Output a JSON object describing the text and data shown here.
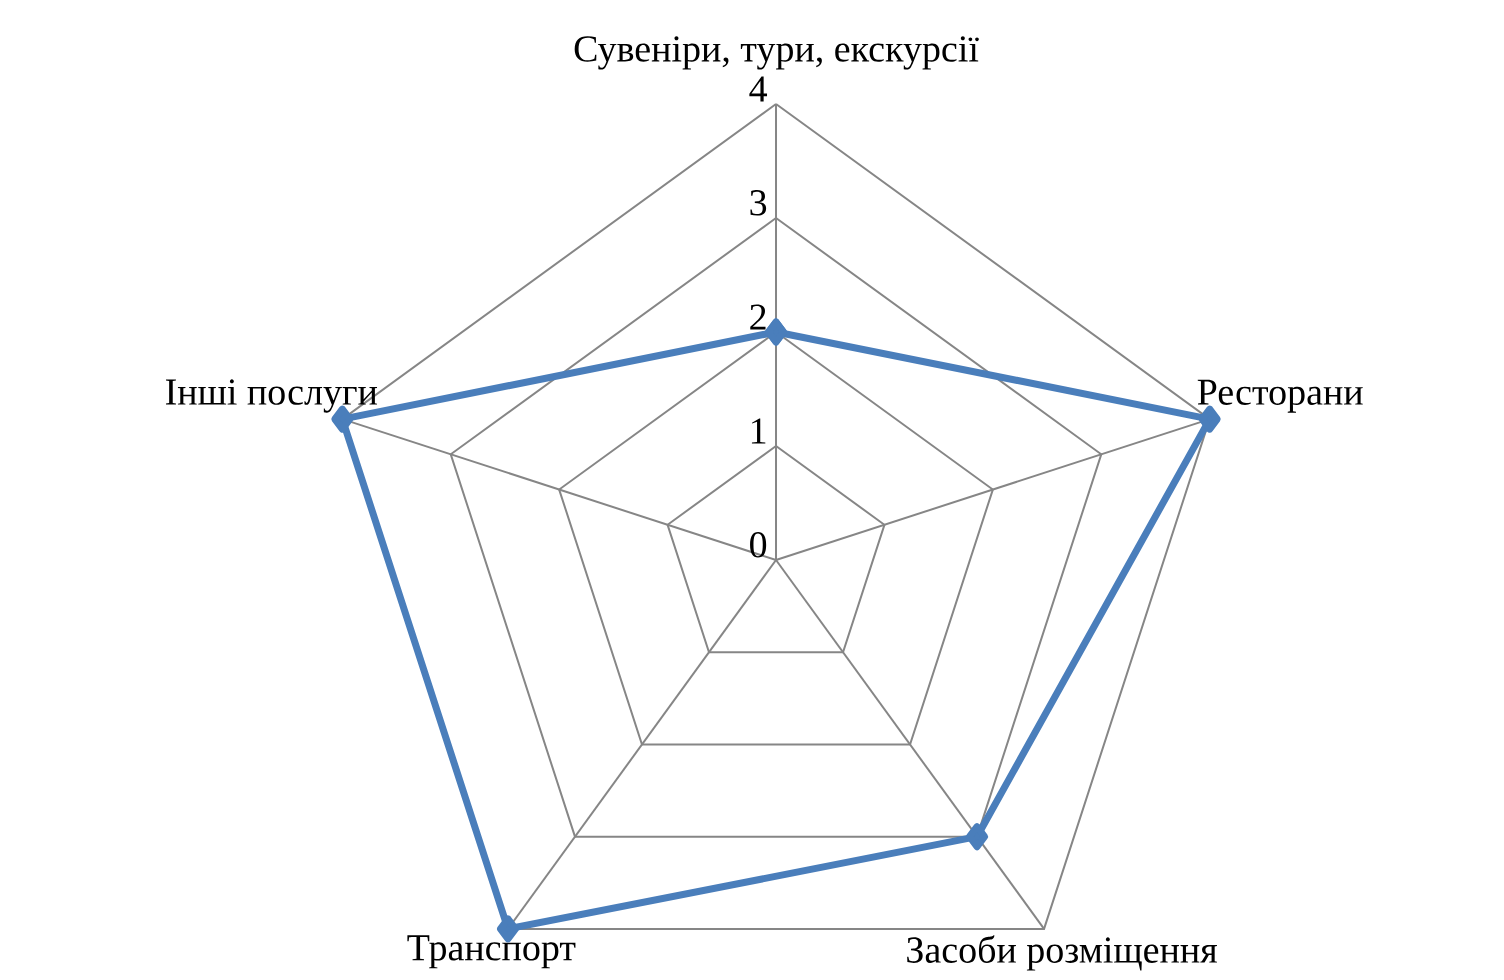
{
  "chart_data": {
    "type": "radar",
    "categories": [
      "Сувеніри, тури, екскурсії",
      "Ресторани",
      "Засоби розміщення",
      "Транспорт",
      "Інші послуги"
    ],
    "series": [
      {
        "color": "#4a7ebb",
        "values": [
          2,
          4,
          3,
          4,
          4
        ]
      }
    ],
    "ylim": [
      0,
      4
    ],
    "yticks": [
      0,
      1,
      2,
      3,
      4
    ],
    "grid": true,
    "marker": "diamond",
    "line_style": "solid"
  }
}
